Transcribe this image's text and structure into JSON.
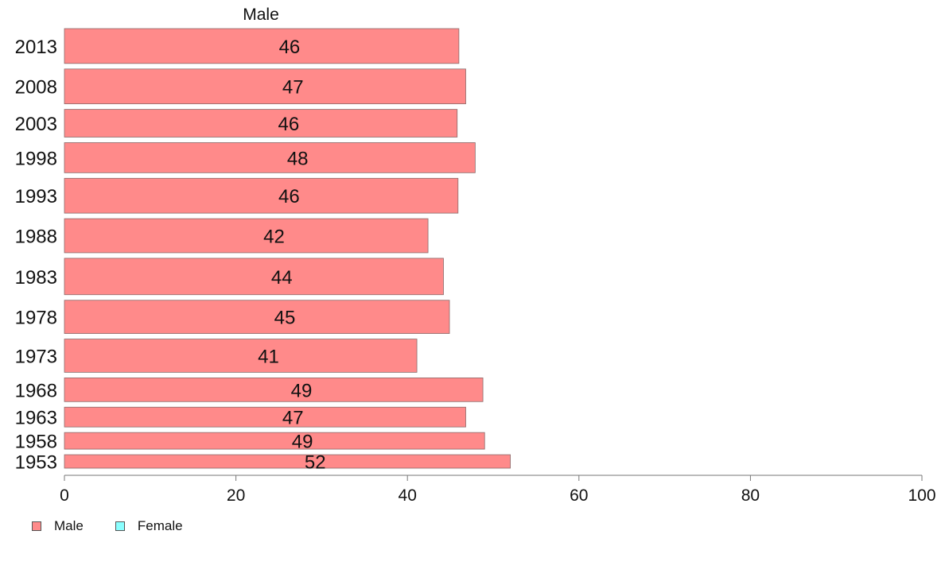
{
  "chart_data": {
    "type": "bar",
    "orientation": "horizontal",
    "title": "Male",
    "categories": [
      "2013",
      "2008",
      "2003",
      "1998",
      "1993",
      "1988",
      "1983",
      "1978",
      "1973",
      "1968",
      "1963",
      "1958",
      "1953"
    ],
    "series": [
      {
        "name": "Male",
        "color": "#ff8a8a",
        "values": [
          46,
          46.8,
          45.8,
          47.9,
          45.9,
          42.4,
          44.2,
          44.9,
          41.1,
          48.8,
          46.8,
          49.0,
          52.0
        ],
        "labels": [
          "46",
          "47",
          "46",
          "48",
          "46",
          "42",
          "44",
          "45",
          "41",
          "49",
          "47",
          "49",
          "52"
        ]
      }
    ],
    "bar_weights": [
      44,
      44,
      35,
      38,
      44,
      43,
      46,
      42,
      42,
      30,
      25,
      21,
      17
    ],
    "xlim": [
      0,
      100
    ],
    "xticks": [
      "0",
      "20",
      "40",
      "60",
      "80",
      "100"
    ],
    "legend": {
      "position": "bottom-left",
      "items": [
        {
          "label": "Male",
          "color": "#ff8a8a"
        },
        {
          "label": "Female",
          "color": "#8affff"
        }
      ]
    }
  }
}
